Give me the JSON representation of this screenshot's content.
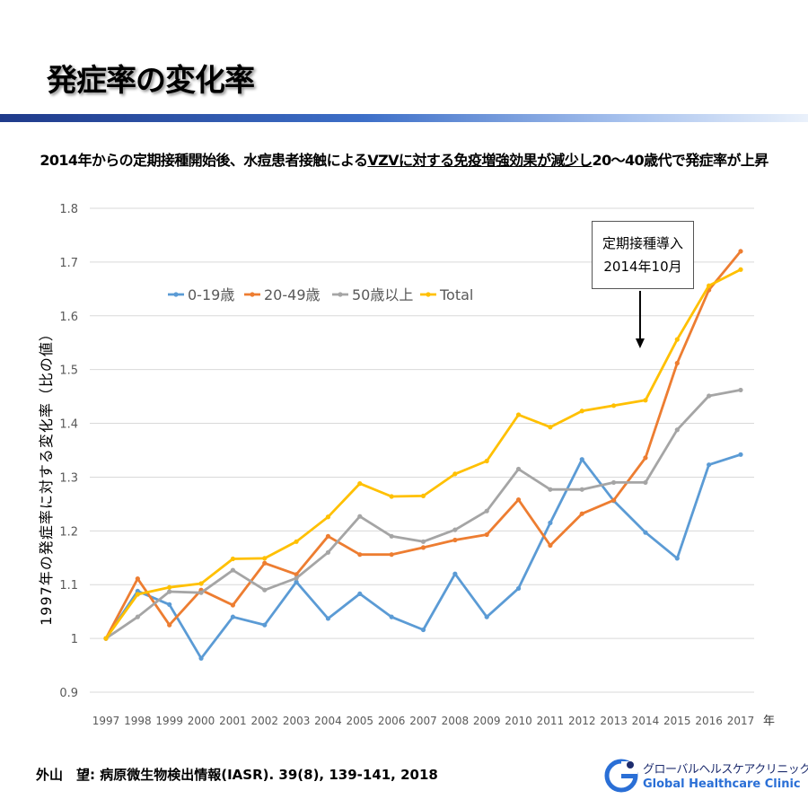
{
  "page": {
    "title": "発症率の変化率",
    "subtitle_before": "2014年からの定期接種開始後、水痘患者接触による",
    "subtitle_underlined": "VZVに対する免疫増強効果が減少し",
    "subtitle_after": "20～40歳代で発症率が上昇",
    "source": "外山　望: 病原微生物検出情報(IASR). 39(8), 139-141, 2018",
    "logo_jp": "グローバルヘルスケアクリニック",
    "logo_en": "Global Healthcare Clinic"
  },
  "chart_data": {
    "type": "line",
    "title": "",
    "ylabel": "1997年の発症率に対する変化率（比の値）",
    "xlabel": "年",
    "x": [
      1997,
      1998,
      1999,
      2000,
      2001,
      2002,
      2003,
      2004,
      2005,
      2006,
      2007,
      2008,
      2009,
      2010,
      2011,
      2012,
      2013,
      2014,
      2015,
      2016,
      2017
    ],
    "ylim": [
      0.9,
      1.8
    ],
    "yticks": [
      "0.9",
      "1",
      "1.1",
      "1.2",
      "1.3",
      "1.4",
      "1.5",
      "1.6",
      "1.7",
      "1.8"
    ],
    "grid": "horizontal",
    "legend_position": "top-left",
    "series": [
      {
        "name": "0-19歳",
        "color": "#5b9bd5",
        "values": [
          1.0,
          1.088,
          1.063,
          0.963,
          1.04,
          1.025,
          1.105,
          1.037,
          1.083,
          1.04,
          1.016,
          1.12,
          1.04,
          1.093,
          1.215,
          1.333,
          1.256,
          1.197,
          1.149,
          1.323,
          1.342
        ]
      },
      {
        "name": "20-49歳",
        "color": "#ed7d31",
        "values": [
          1.0,
          1.111,
          1.025,
          1.09,
          1.062,
          1.14,
          1.119,
          1.19,
          1.156,
          1.156,
          1.169,
          1.183,
          1.193,
          1.258,
          1.173,
          1.232,
          1.257,
          1.336,
          1.512,
          1.648,
          1.72
        ]
      },
      {
        "name": "50歳以上",
        "color": "#a5a5a5",
        "values": [
          1.0,
          1.04,
          1.087,
          1.085,
          1.127,
          1.09,
          1.112,
          1.16,
          1.227,
          1.19,
          1.18,
          1.202,
          1.237,
          1.315,
          1.277,
          1.277,
          1.29,
          1.29,
          1.388,
          1.451,
          1.462
        ]
      },
      {
        "name": "Total",
        "color": "#ffc000",
        "values": [
          1.0,
          1.082,
          1.095,
          1.102,
          1.148,
          1.149,
          1.18,
          1.226,
          1.288,
          1.264,
          1.265,
          1.306,
          1.33,
          1.416,
          1.393,
          1.423,
          1.433,
          1.443,
          1.556,
          1.656,
          1.686
        ]
      }
    ],
    "annotation": {
      "line1": "定期接種導入",
      "line2": "2014年10月",
      "year": 2014
    }
  }
}
